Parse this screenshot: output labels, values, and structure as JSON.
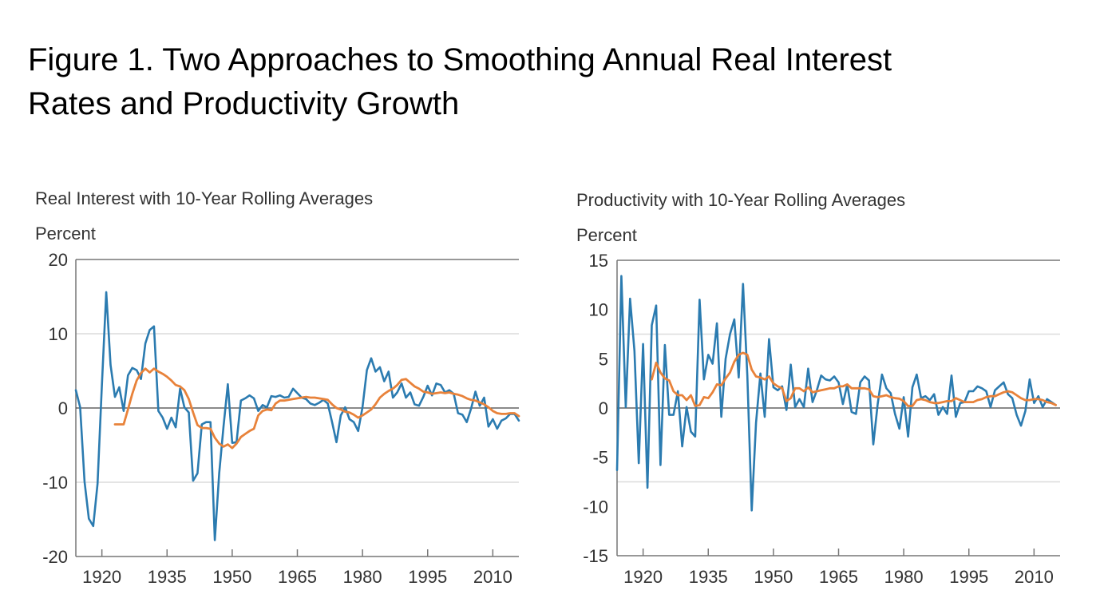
{
  "figure": {
    "title_line1": "Figure 1. Two Approaches to Smoothing Annual Real Interest",
    "title_line2": "Rates and Productivity Growth"
  },
  "colors": {
    "annual": "#2b7bb0",
    "rolling_average": "#e8823a",
    "gridline": "#dcdcdc",
    "axis": "#777777",
    "zero_line": "#444444"
  },
  "chart_data": [
    {
      "type": "line",
      "title": "Real Interest with 10-Year Rolling Averages",
      "ylabel": "Percent",
      "xlabel": "",
      "xlim": [
        1914,
        2016
      ],
      "ylim": [
        -20,
        20
      ],
      "yticks": [
        20,
        10,
        0,
        -10,
        -20
      ],
      "xticks": [
        1920,
        1935,
        1950,
        1965,
        1980,
        1995,
        2010
      ],
      "gridlines_y": [
        10,
        -10
      ],
      "zero_line": true,
      "grid": true,
      "legend": "none",
      "series": [
        {
          "name": "Annual real interest rate",
          "color_key": "annual",
          "start_year": 1914,
          "values": [
            2.4,
            0.1,
            -9.9,
            -14.9,
            -15.9,
            -10.2,
            3.0,
            15.6,
            5.8,
            1.5,
            2.8,
            -0.4,
            4.4,
            5.4,
            5.1,
            3.9,
            8.7,
            10.5,
            11.0,
            -0.4,
            -1.3,
            -2.8,
            -1.3,
            -2.6,
            2.6,
            0.1,
            -0.6,
            -9.8,
            -8.8,
            -2.2,
            -1.9,
            -1.9,
            -17.8,
            -8.8,
            -2.5,
            3.2,
            -4.7,
            -4.6,
            1.0,
            1.3,
            1.7,
            1.3,
            -0.4,
            0.4,
            0.1,
            1.6,
            1.5,
            1.7,
            1.4,
            1.5,
            2.6,
            2.0,
            1.4,
            1.2,
            0.6,
            0.4,
            0.7,
            1.1,
            0.6,
            -1.9,
            -4.6,
            -1.0,
            0.1,
            -1.5,
            -1.9,
            -3.1,
            0.1,
            5.1,
            6.7,
            4.9,
            5.5,
            3.6,
            4.9,
            1.4,
            2.1,
            3.3,
            1.4,
            2.1,
            0.5,
            0.3,
            1.5,
            3.0,
            1.7,
            3.3,
            3.1,
            2.1,
            2.4,
            1.9,
            -0.7,
            -0.9,
            -1.9,
            -0.1,
            2.2,
            0.3,
            1.4,
            -2.5,
            -1.5,
            -2.8,
            -1.7,
            -1.4,
            -0.8,
            -0.8,
            -1.7
          ]
        },
        {
          "name": "10-year rolling average",
          "color_key": "rolling_average",
          "start_year": 1923,
          "values": [
            -2.2,
            -2.2,
            -2.2,
            -0.2,
            1.9,
            3.7,
            4.7,
            5.3,
            4.8,
            5.3,
            4.9,
            4.6,
            4.2,
            3.7,
            3.1,
            2.9,
            2.4,
            1.2,
            -0.6,
            -2.3,
            -2.7,
            -2.7,
            -2.8,
            -4.0,
            -4.8,
            -5.2,
            -4.9,
            -5.4,
            -4.8,
            -3.9,
            -3.5,
            -3.1,
            -2.8,
            -1.0,
            -0.4,
            -0.2,
            -0.3,
            0.6,
            1.0,
            1.0,
            1.1,
            1.2,
            1.3,
            1.4,
            1.5,
            1.4,
            1.4,
            1.3,
            1.2,
            1.1,
            0.5,
            0.0,
            -0.2,
            -0.5,
            -0.6,
            -0.9,
            -1.3,
            -1.0,
            -0.6,
            -0.2,
            0.5,
            1.4,
            1.9,
            2.3,
            2.6,
            3.1,
            3.8,
            3.9,
            3.4,
            2.9,
            2.6,
            2.2,
            2.1,
            1.9,
            2.0,
            2.1,
            2.0,
            2.1,
            1.9,
            1.8,
            1.6,
            1.3,
            1.1,
            1.0,
            0.75,
            0.5,
            0.1,
            -0.4,
            -0.7,
            -0.8,
            -0.8,
            -0.7,
            -0.7,
            -1.1
          ]
        }
      ]
    },
    {
      "type": "line",
      "title": "Productivity with 10-Year Rolling Averages",
      "ylabel": "Percent",
      "xlabel": "",
      "xlim": [
        1914,
        2016
      ],
      "ylim": [
        -15,
        15
      ],
      "yticks": [
        15,
        10,
        5,
        0,
        -5,
        -10,
        -15
      ],
      "xticks": [
        1920,
        1935,
        1950,
        1965,
        1980,
        1995,
        2010
      ],
      "gridlines_y": [
        7.5,
        -7.5
      ],
      "zero_line": true,
      "grid": true,
      "legend": "none",
      "series": [
        {
          "name": "Annual productivity growth",
          "color_key": "annual",
          "start_year": 1914,
          "values": [
            -6.3,
            13.4,
            0.1,
            11.1,
            5.8,
            -5.6,
            6.5,
            -8.1,
            8.4,
            10.4,
            -5.8,
            6.4,
            -0.7,
            -0.7,
            1.7,
            -3.9,
            0.1,
            -2.4,
            -2.9,
            11.0,
            2.9,
            5.4,
            4.5,
            8.6,
            -0.9,
            5.0,
            7.5,
            9.0,
            3.1,
            12.6,
            3.3,
            -10.4,
            -1.5,
            3.5,
            -0.9,
            7.0,
            2.1,
            1.8,
            2.2,
            -0.2,
            4.4,
            0.1,
            0.9,
            0.1,
            4.0,
            0.6,
            1.8,
            3.3,
            2.9,
            2.8,
            3.2,
            2.6,
            0.4,
            2.4,
            -0.4,
            -0.6,
            2.6,
            3.2,
            2.8,
            -3.7,
            0.4,
            3.4,
            2.0,
            1.5,
            -0.6,
            -2.1,
            1.1,
            -2.9,
            2.1,
            3.4,
            1.0,
            1.2,
            0.8,
            1.4,
            -0.7,
            0.1,
            -0.6,
            3.3,
            -0.9,
            0.5,
            0.6,
            1.7,
            1.7,
            2.2,
            2.0,
            1.7,
            0.1,
            1.8,
            2.2,
            2.6,
            1.4,
            1.0,
            -0.7,
            -1.8,
            -0.3,
            2.9,
            0.5,
            1.2,
            0.1,
            0.9,
            0.6,
            0.3
          ]
        },
        {
          "name": "10-year rolling average",
          "color_key": "rolling_average",
          "start_year": 1922,
          "values": [
            2.9,
            4.6,
            3.6,
            3.0,
            2.8,
            1.7,
            1.3,
            1.3,
            0.8,
            1.3,
            0.2,
            0.3,
            1.1,
            1.0,
            1.6,
            2.4,
            2.3,
            3.0,
            3.6,
            4.7,
            5.4,
            5.6,
            5.4,
            3.9,
            3.2,
            3.1,
            2.9,
            3.2,
            2.5,
            2.2,
            2.0,
            0.7,
            1.0,
            2.0,
            2.0,
            1.7,
            2.1,
            1.6,
            1.7,
            1.8,
            1.9,
            2.0,
            2.0,
            2.2,
            2.2,
            2.4,
            2.0,
            2.0,
            2.0,
            2.0,
            1.9,
            1.2,
            1.1,
            1.2,
            1.3,
            1.1,
            1.0,
            0.95,
            0.7,
            0.2,
            0.2,
            0.8,
            0.9,
            0.8,
            0.6,
            0.5,
            0.5,
            0.6,
            0.7,
            0.7,
            1.0,
            0.8,
            0.6,
            0.6,
            0.6,
            0.8,
            0.9,
            1.1,
            1.2,
            1.2,
            1.4,
            1.6,
            1.7,
            1.6,
            1.3,
            1.0,
            0.8,
            0.8,
            0.9,
            0.9,
            0.8,
            0.6,
            0.5,
            0.3
          ]
        }
      ]
    }
  ]
}
